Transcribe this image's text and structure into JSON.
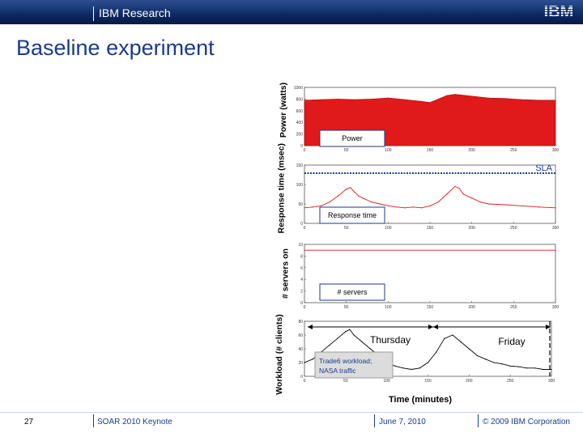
{
  "header": {
    "org": "IBM Research",
    "logo_text": "IBM",
    "bg_color": "#0d2a63"
  },
  "slide": {
    "title": "Baseline experiment"
  },
  "footer": {
    "page": "27",
    "deck": "SOAR 2010 Keynote",
    "date": "June 7, 2010",
    "copyright": "© 2009 IBM Corporation"
  },
  "chart_data": [
    {
      "type": "area",
      "ylabel": "Power (watts)",
      "legend_box": "Power",
      "xlim": [
        0,
        300
      ],
      "ylim": [
        0,
        1000
      ],
      "xticks": [
        0,
        50,
        100,
        150,
        200,
        250,
        300
      ],
      "yticks": [
        0,
        200,
        400,
        600,
        800,
        1000
      ],
      "color": "#e0191b",
      "series": [
        {
          "x": [
            0,
            20,
            40,
            60,
            80,
            100,
            120,
            140,
            150,
            160,
            170,
            180,
            200,
            220,
            240,
            260,
            280,
            300
          ],
          "values": [
            780,
            790,
            800,
            790,
            800,
            820,
            790,
            760,
            740,
            800,
            860,
            880,
            850,
            820,
            810,
            790,
            780,
            780
          ]
        }
      ]
    },
    {
      "type": "line",
      "ylabel": "Response time (msec)",
      "legend_box": "Response time",
      "annotation": "SLA",
      "sla_value": 150,
      "xlim": [
        0,
        300
      ],
      "ylim": [
        0,
        150
      ],
      "xticks": [
        0,
        50,
        100,
        150,
        200,
        250,
        300
      ],
      "yticks": [
        0,
        50,
        100,
        150
      ],
      "color": "#e0191b",
      "sla_color": "#1a3a8f",
      "series": [
        {
          "x": [
            0,
            10,
            20,
            30,
            40,
            50,
            55,
            60,
            65,
            70,
            80,
            90,
            100,
            110,
            120,
            130,
            140,
            150,
            160,
            170,
            180,
            185,
            190,
            200,
            210,
            220,
            240,
            260,
            280,
            300
          ],
          "values": [
            40,
            42,
            45,
            55,
            70,
            88,
            92,
            80,
            70,
            65,
            55,
            50,
            45,
            42,
            40,
            42,
            40,
            45,
            55,
            75,
            95,
            90,
            75,
            65,
            55,
            50,
            48,
            45,
            42,
            40
          ]
        }
      ]
    },
    {
      "type": "line",
      "ylabel": "# servers on",
      "legend_box": "# servers",
      "xlim": [
        0,
        300
      ],
      "ylim": [
        0,
        10
      ],
      "xticks": [
        0,
        50,
        100,
        150,
        200,
        250,
        300
      ],
      "yticks": [
        0,
        2,
        4,
        6,
        8,
        10
      ],
      "color": "#e0191b",
      "series": [
        {
          "x": [
            0,
            300
          ],
          "values": [
            9,
            9
          ]
        }
      ]
    },
    {
      "type": "line",
      "ylabel": "Workload (# clients)",
      "annotations": [
        "Thursday",
        "Friday"
      ],
      "legend_box": "Trade6 workload; NASA traffic",
      "xlabel": "Time (minutes)",
      "xlim": [
        0,
        300
      ],
      "ylim": [
        0,
        80
      ],
      "xticks": [
        0,
        50,
        100,
        150,
        200,
        250,
        300
      ],
      "yticks": [
        0,
        20,
        40,
        60,
        80
      ],
      "color": "#000000",
      "series": [
        {
          "x": [
            0,
            10,
            20,
            30,
            40,
            50,
            55,
            60,
            70,
            80,
            90,
            100,
            110,
            120,
            130,
            140,
            150,
            160,
            170,
            180,
            190,
            200,
            210,
            220,
            230,
            240,
            250,
            260,
            270,
            280,
            290,
            300
          ],
          "values": [
            20,
            25,
            35,
            45,
            55,
            65,
            68,
            60,
            50,
            40,
            30,
            20,
            15,
            12,
            10,
            12,
            20,
            35,
            55,
            60,
            50,
            40,
            30,
            25,
            20,
            18,
            15,
            14,
            12,
            12,
            10,
            10
          ]
        }
      ]
    }
  ]
}
